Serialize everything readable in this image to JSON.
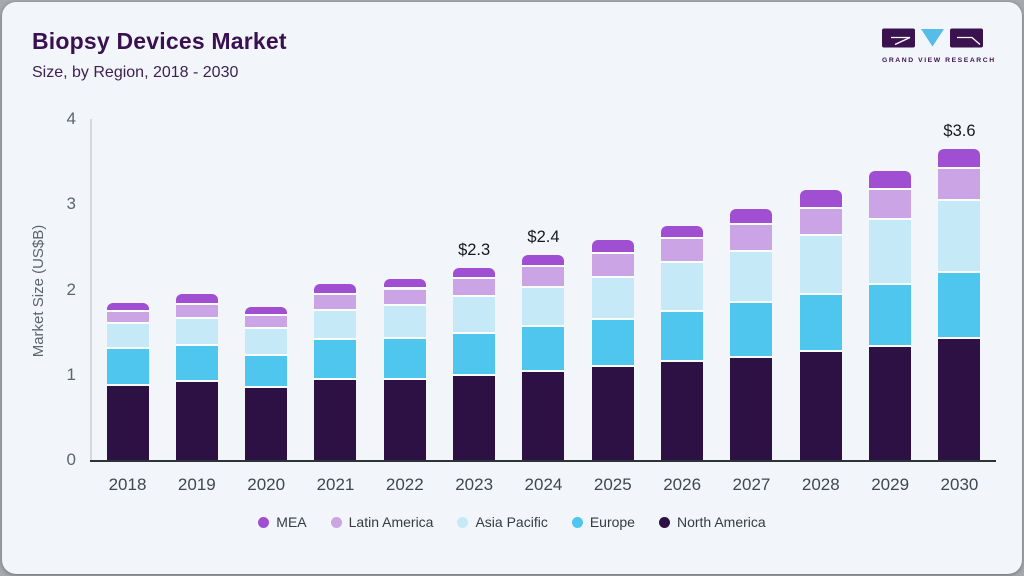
{
  "header": {
    "title": "Biopsy Devices Market",
    "subtitle": "Size, by Region, 2018 - 2030"
  },
  "logo": {
    "brand": "GRAND VIEW RESEARCH",
    "mark_dark_color": "#3b1250",
    "mark_blue_color": "#55bde8"
  },
  "chart_data": {
    "type": "bar",
    "stacked": true,
    "title": "Biopsy Devices Market Size, by Region, 2018 - 2030",
    "ylabel": "Market Size (US$B)",
    "ylim": [
      0,
      4
    ],
    "yticks": [
      "0",
      "1",
      "2",
      "3",
      "4"
    ],
    "grid": false,
    "legend_position": "bottom",
    "categories": [
      "2018",
      "2019",
      "2020",
      "2021",
      "2022",
      "2023",
      "2024",
      "2025",
      "2026",
      "2027",
      "2028",
      "2029",
      "2030"
    ],
    "series": [
      {
        "name": "North America",
        "color": "#2e1144",
        "values": [
          0.87,
          0.91,
          0.84,
          0.94,
          0.94,
          0.99,
          1.03,
          1.09,
          1.15,
          1.2,
          1.27,
          1.32,
          1.42
        ]
      },
      {
        "name": "Europe",
        "color": "#4fc6ee",
        "values": [
          0.43,
          0.43,
          0.38,
          0.47,
          0.48,
          0.49,
          0.53,
          0.55,
          0.59,
          0.64,
          0.66,
          0.73,
          0.77
        ]
      },
      {
        "name": "Asia Pacific",
        "color": "#c5e9f7",
        "values": [
          0.29,
          0.31,
          0.32,
          0.34,
          0.39,
          0.43,
          0.46,
          0.5,
          0.57,
          0.6,
          0.7,
          0.76,
          0.85
        ]
      },
      {
        "name": "Latin America",
        "color": "#cba4e6",
        "values": [
          0.15,
          0.17,
          0.15,
          0.18,
          0.19,
          0.21,
          0.24,
          0.28,
          0.28,
          0.32,
          0.32,
          0.36,
          0.37
        ]
      },
      {
        "name": "MEA",
        "color": "#a04fd3",
        "values": [
          0.1,
          0.13,
          0.11,
          0.13,
          0.12,
          0.13,
          0.15,
          0.16,
          0.16,
          0.19,
          0.22,
          0.22,
          0.24
        ]
      }
    ],
    "annotations": [
      {
        "category": "2023",
        "text": "$2.3"
      },
      {
        "category": "2024",
        "text": "$2.4"
      },
      {
        "category": "2030",
        "text": "$3.6"
      }
    ],
    "legend": [
      "MEA",
      "Latin America",
      "Asia Pacific",
      "Europe",
      "North America"
    ]
  }
}
